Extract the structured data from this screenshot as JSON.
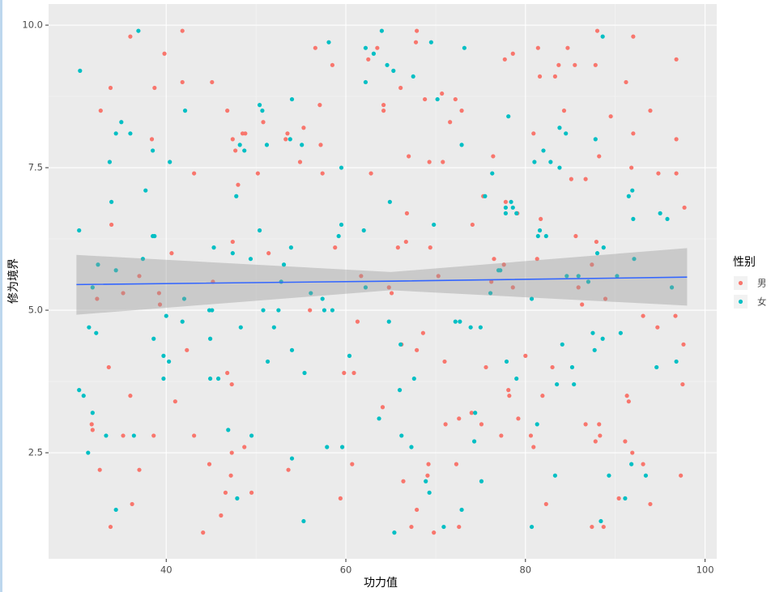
{
  "chart_data": {
    "type": "scatter",
    "x_label": "功力值",
    "y_label": "修为境界",
    "legend_title": "性别",
    "legend_position": "right",
    "xlim": [
      26.9,
      101.3
    ],
    "xticks": [
      40,
      60,
      80,
      100
    ],
    "ylim": [
      0.64,
      10.37
    ],
    "yticks": [
      {
        "value": 2.5,
        "label": "2.5"
      },
      {
        "value": 5,
        "label": "5.0"
      },
      {
        "value": 7.5,
        "label": "7.5"
      },
      {
        "value": 10,
        "label": "10.0"
      }
    ],
    "grid": true,
    "series": [
      {
        "name": "男",
        "color": "#F8766D",
        "x": [
          36,
          41.8,
          39.8,
          33.8,
          38.7,
          32.7,
          41.8,
          45.1,
          38.4,
          46.8,
          43.1,
          40.6,
          33.9,
          37,
          35.2,
          39.2,
          32.3,
          39.3,
          33.6,
          36,
          41,
          42.3,
          31.7,
          31.8,
          35.2,
          38.6,
          43.1,
          32.6,
          37,
          44.8,
          36.2,
          33.8,
          44.1,
          46.1,
          46.6,
          47.2,
          47.3,
          46.8,
          47.3,
          45.2,
          47.4,
          47.4,
          47.7,
          48.5,
          48.8,
          48,
          50.2,
          50.8,
          48.7,
          49.5,
          51.4,
          53.5,
          53.3,
          54.9,
          55.3,
          56.6,
          57.1,
          57.4,
          57.2,
          58.5,
          58.8,
          56,
          53.6,
          59.8,
          59.4,
          60.7,
          60.9,
          61.3,
          61.7,
          62.5,
          62.8,
          63.5,
          64.2,
          64.2,
          64.8,
          65.1,
          65.8,
          66.1,
          66.2,
          64.1,
          66.4,
          66.7,
          67,
          66.8,
          67.9,
          67.8,
          67.9,
          67.3,
          67.9,
          68.6,
          69.1,
          68.8,
          69.2,
          69.3,
          69.4,
          69.8,
          70.3,
          70.7,
          71,
          70.8,
          71.1,
          71.6,
          72.2,
          72.3,
          72.6,
          72.9,
          72.6,
          74,
          74.1,
          75.1,
          75.3,
          75.6,
          76.2,
          76.4,
          76.5,
          77.3,
          77.7,
          77.6,
          77.8,
          78.1,
          78.2,
          78.6,
          78.6,
          79.1,
          79.2,
          80,
          80.9,
          80.6,
          80.9,
          81.3,
          81.4,
          81.7,
          81.6,
          81.9,
          82.3,
          83,
          83.3,
          83.7,
          84.3,
          84.7,
          85.1,
          85.5,
          85.6,
          85.9,
          86.3,
          86.7,
          86.7,
          87.4,
          87.4,
          87.8,
          88,
          87.9,
          88.2,
          87.8,
          88.2,
          88.3,
          88.7,
          88.9,
          89.5,
          90.4,
          91.2,
          91.1,
          91.3,
          91.5,
          91.8,
          91.9,
          92,
          92,
          93.1,
          93.1,
          93.9,
          93.9,
          94.8,
          94.7,
          96.8,
          96.8,
          96.8,
          96.7,
          97.3,
          97.5,
          97.6,
          97.7
        ],
        "values": [
          9.8,
          9.9,
          9.5,
          8.9,
          8.9,
          8.5,
          9.0,
          9.0,
          8.0,
          8.5,
          7.4,
          6.0,
          6.5,
          5.6,
          5.3,
          5.3,
          5.2,
          5.1,
          4.0,
          3.5,
          3.4,
          4.3,
          3.0,
          2.9,
          2.8,
          2.8,
          2.8,
          2.2,
          2.2,
          2.3,
          1.6,
          1.2,
          1.1,
          1.4,
          1.8,
          2.1,
          2.5,
          3.9,
          3.7,
          5.5,
          6.2,
          8.0,
          7.8,
          8.1,
          8.1,
          7.2,
          7.4,
          8.3,
          2.6,
          1.8,
          6.0,
          8.1,
          8.0,
          7.6,
          8.2,
          9.6,
          8.6,
          7.4,
          7.9,
          9.3,
          6.1,
          5.0,
          2.2,
          3.9,
          1.7,
          2.3,
          3.9,
          4.8,
          5.6,
          9.4,
          7.4,
          9.6,
          8.6,
          8.5,
          5.4,
          5.3,
          6.1,
          8.9,
          4.4,
          3.3,
          2.0,
          6.2,
          7.7,
          6.7,
          9.9,
          9.7,
          4.3,
          1.2,
          1.5,
          4.6,
          2.1,
          8.7,
          2.3,
          7.6,
          6.1,
          1.1,
          5.6,
          8.8,
          4.1,
          7.6,
          3.0,
          8.3,
          8.7,
          2.3,
          3.1,
          8.5,
          1.2,
          3.2,
          6.5,
          3.0,
          7.0,
          4.0,
          5.5,
          7.7,
          5.9,
          2.8,
          9.4,
          5.8,
          6.9,
          3.6,
          3.5,
          9.5,
          5.4,
          6.7,
          3.1,
          4.2,
          8.1,
          2.8,
          2.6,
          5.9,
          9.6,
          6.6,
          9.1,
          3.5,
          1.6,
          4.0,
          9.1,
          9.3,
          8.5,
          9.6,
          7.3,
          9.3,
          6.3,
          5.4,
          5.1,
          7.3,
          3.0,
          1.2,
          5.8,
          9.3,
          9.9,
          6.2,
          7.7,
          2.7,
          3.0,
          2.8,
          1.2,
          5.2,
          8.4,
          1.7,
          9.0,
          2.7,
          3.5,
          3.4,
          7.5,
          2.5,
          8.1,
          9.8,
          2.3,
          4.9,
          8.5,
          1.6,
          7.4,
          4.7,
          9.4,
          8.0,
          7.4,
          4.9,
          2.1,
          3.7,
          4.4,
          6.8
        ]
      },
      {
        "name": "女",
        "color": "#00BFC4",
        "x": [
          30.4,
          30.3,
          30.3,
          30.8,
          31.4,
          31.3,
          31.8,
          31.8,
          32.2,
          32.4,
          33.3,
          33.7,
          33.9,
          34.4,
          34.4,
          34.4,
          35,
          36,
          36.4,
          36.9,
          37.4,
          37.7,
          38.5,
          38.5,
          38.7,
          38.6,
          39.7,
          39.7,
          40,
          40.3,
          40.4,
          42.1,
          42,
          41.8,
          44.8,
          45.1,
          44.9,
          44.9,
          45.3,
          45.8,
          46.9,
          47.4,
          47.8,
          47.9,
          48.2,
          48.3,
          48.7,
          49.4,
          49.5,
          50.4,
          50.4,
          50.7,
          50.8,
          51.2,
          51.3,
          52,
          52.5,
          52.8,
          53.1,
          53.8,
          53.9,
          54,
          54,
          54,
          55.1,
          55.3,
          55.4,
          56.1,
          57.4,
          57.6,
          57.9,
          58.1,
          58.5,
          59.2,
          59.5,
          59.6,
          59.5,
          60.4,
          62,
          62.2,
          62.2,
          62.2,
          63.1,
          63.7,
          64,
          64.6,
          64.8,
          64.9,
          65.3,
          66.1,
          66.2,
          65.4,
          66,
          67.3,
          67.5,
          67.6,
          68.9,
          69.3,
          69.5,
          69.8,
          70.2,
          70.9,
          72.2,
          72.7,
          72.9,
          72.9,
          73.2,
          73.9,
          74.3,
          74.4,
          75,
          75.1,
          75.5,
          76.1,
          76.3,
          77,
          77.2,
          77.8,
          77.8,
          77.9,
          78.1,
          78.4,
          78.6,
          79,
          79,
          80.7,
          80.7,
          81,
          81.3,
          81.6,
          81.4,
          82,
          82.3,
          82.8,
          83.3,
          83.5,
          83.8,
          83.8,
          84.1,
          84.5,
          84.6,
          85.2,
          85.4,
          85.9,
          87,
          87.5,
          87.7,
          87.8,
          88,
          88.4,
          88.6,
          88.6,
          88.7,
          89.3,
          90.2,
          90.6,
          91.1,
          91.5,
          91.9,
          91.8,
          92,
          92.1,
          93.4,
          94.6,
          95,
          95.8,
          96.3,
          96.8
        ],
        "values": [
          9.2,
          6.4,
          3.6,
          3.5,
          4.7,
          2.5,
          3.2,
          5.4,
          4.6,
          5.8,
          2.8,
          7.6,
          6.9,
          8.1,
          5.7,
          1.5,
          8.3,
          8.1,
          2.8,
          9.9,
          5.9,
          7.1,
          7.8,
          6.3,
          6.3,
          4.5,
          4.2,
          3.8,
          4.9,
          4.1,
          7.6,
          8.5,
          5.2,
          4.8,
          5.0,
          5.0,
          4.5,
          3.8,
          6.1,
          3.8,
          2.9,
          6.0,
          7.0,
          1.7,
          7.9,
          4.7,
          7.8,
          5.9,
          2.8,
          8.6,
          6.4,
          8.5,
          5.0,
          7.9,
          4.1,
          4.7,
          5.0,
          5.5,
          5.8,
          8.0,
          6.1,
          8.7,
          2.4,
          4.3,
          7.9,
          1.3,
          3.9,
          5.3,
          5.2,
          5.0,
          2.6,
          9.7,
          5.0,
          6.3,
          6.5,
          2.6,
          7.5,
          4.2,
          6.4,
          9.6,
          9.0,
          5.4,
          9.5,
          3.1,
          9.9,
          9.3,
          4.8,
          6.9,
          9.2,
          4.4,
          2.8,
          1.1,
          3.6,
          2.6,
          9.1,
          3.8,
          2.0,
          1.8,
          9.7,
          6.5,
          8.7,
          1.2,
          4.8,
          4.8,
          7.9,
          1.5,
          9.6,
          4.7,
          2.7,
          3.2,
          4.7,
          2.0,
          7.0,
          5.3,
          7.4,
          5.7,
          5.7,
          6.8,
          6.7,
          4.1,
          8.4,
          6.9,
          6.8,
          3.8,
          6.7,
          5.2,
          1.2,
          7.6,
          3.0,
          6.4,
          6.3,
          7.8,
          6.3,
          7.6,
          2.1,
          3.7,
          8.2,
          7.5,
          4.4,
          8.1,
          5.6,
          4.0,
          3.7,
          5.6,
          5.5,
          4.6,
          4.3,
          8.0,
          6.0,
          1.3,
          9.8,
          4.5,
          6.1,
          2.1,
          5.6,
          4.6,
          1.7,
          7.0,
          7.1,
          2.3,
          6.6,
          5.9,
          2.1,
          4.0,
          6.7,
          6.6,
          5.4,
          4.1
        ]
      }
    ],
    "smooth": {
      "color": "#3366FF",
      "band_color": "#999999",
      "x": [
        30,
        65,
        98
      ],
      "values": [
        5.45,
        5.51,
        5.58
      ],
      "lower": [
        4.92,
        5.35,
        5.08
      ],
      "upper": [
        5.97,
        5.67,
        6.09
      ]
    }
  }
}
